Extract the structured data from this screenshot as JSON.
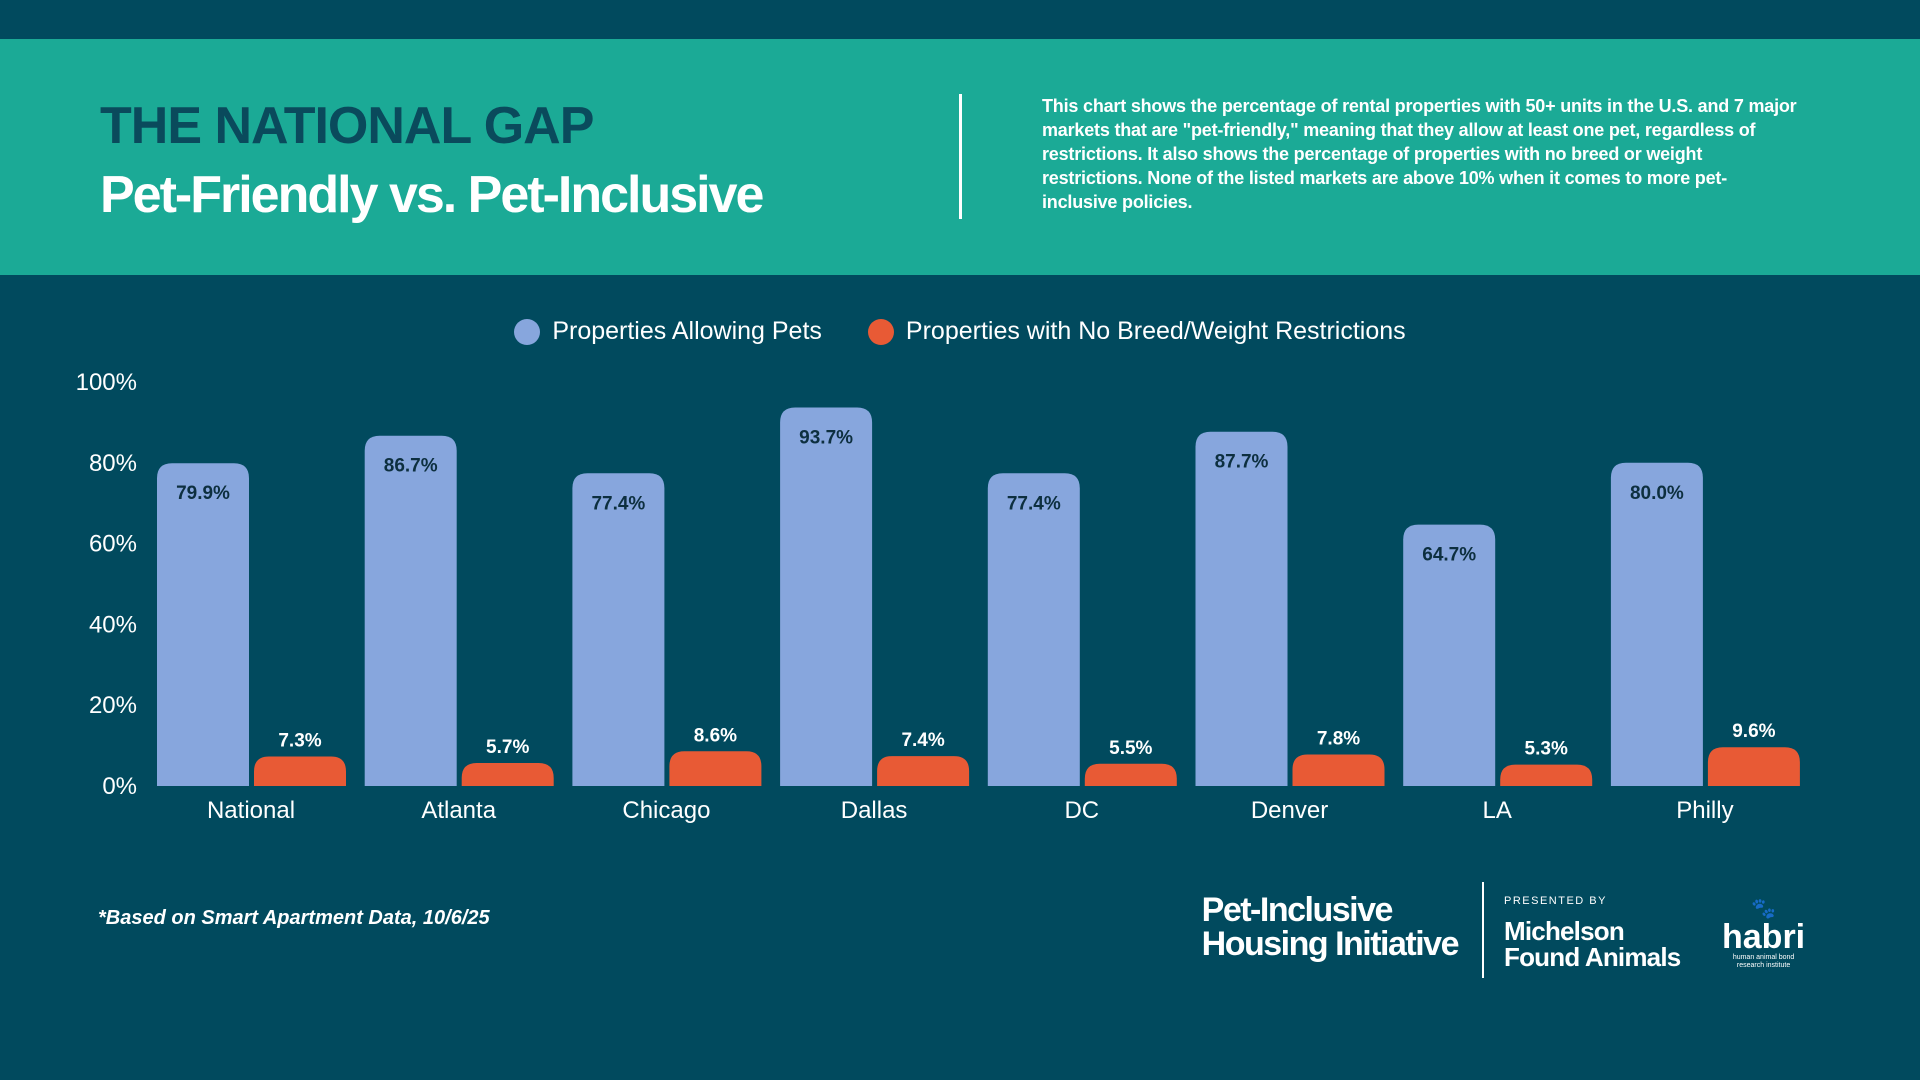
{
  "header": {
    "title": "THE NATIONAL GAP",
    "subtitle": "Pet-Friendly vs. Pet-Inclusive",
    "description": "This chart shows the percentage of rental properties with 50+ units  in the U.S. and 7 major markets that are \"pet-friendly,\" meaning that they allow at least one pet, regardless of restrictions. It also shows the percentage of properties with no breed or weight restrictions. None of the listed markets are above 10% when it comes to more pet-inclusive policies."
  },
  "chart_data": {
    "type": "bar",
    "categories": [
      "National",
      "Atlanta",
      "Chicago",
      "Dallas",
      "DC",
      "Denver",
      "LA",
      "Philly"
    ],
    "series": [
      {
        "name": "Properties Allowing Pets",
        "color": "#87a6dd",
        "values": [
          79.9,
          86.7,
          77.4,
          93.7,
          77.4,
          87.7,
          64.7,
          80.0
        ],
        "labels": [
          "79.9%",
          "86.7%",
          "77.4%",
          "93.7%",
          "77.4%",
          "87.7%",
          "64.7%",
          "80.0%"
        ]
      },
      {
        "name": "Properties with No Breed/Weight Restrictions",
        "color": "#e85a35",
        "values": [
          7.3,
          5.7,
          8.6,
          7.4,
          5.5,
          7.8,
          5.3,
          9.6
        ],
        "labels": [
          "7.3%",
          "5.7%",
          "8.6%",
          "7.4%",
          "5.5%",
          "7.8%",
          "5.3%",
          "9.6%"
        ]
      }
    ],
    "yticks": [
      "0%",
      "20%",
      "40%",
      "60%",
      "80%",
      "100%"
    ],
    "ylim": [
      0,
      100
    ],
    "grid": false,
    "legend": "top-center"
  },
  "footer": {
    "note": "*Based on Smart Apartment Data, 10/6/25",
    "logo_pihi_line1": "Pet-Inclusive",
    "logo_pihi_line2": "Housing Initiative",
    "presented_by": "PRESENTED BY",
    "logo_mfa_line1": "Michelson",
    "logo_mfa_line2": "Found Animals",
    "logo_habri": "habri",
    "logo_habri_sub1": "human animal bond",
    "logo_habri_sub2": "research institute"
  }
}
